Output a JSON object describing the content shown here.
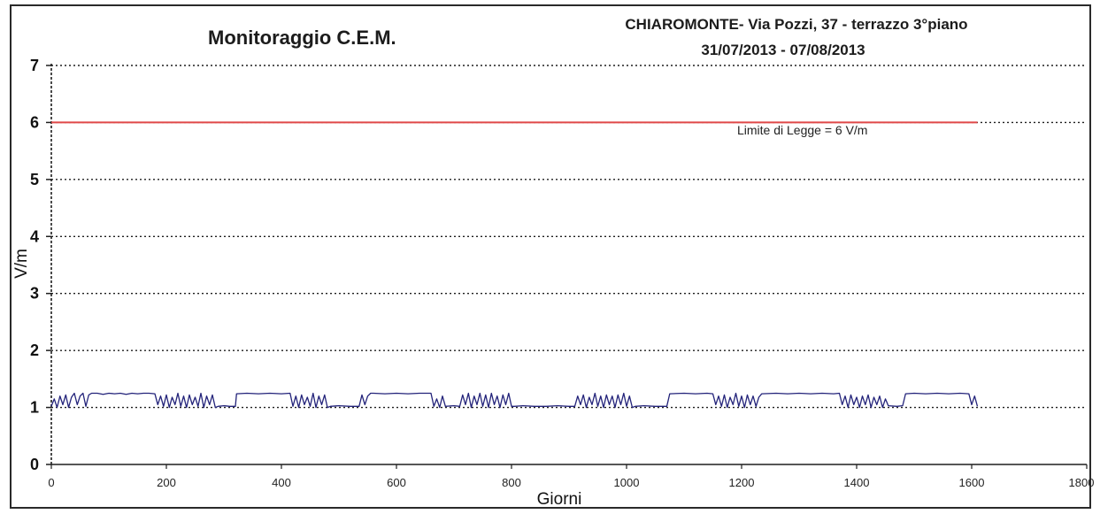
{
  "chart_data": {
    "type": "line",
    "title": "Monitoraggio C.E.M.",
    "subtitle_line1": "CHIAROMONTE- Via Pozzi, 37 - terrazzo 3°piano",
    "subtitle_line2": "31/07/2013 - 07/08/2013",
    "xlabel": "Giorni",
    "ylabel": "V/m",
    "xlim": [
      0,
      1800
    ],
    "ylim": [
      0,
      7
    ],
    "x_ticks": [
      "0",
      "200",
      "400",
      "600",
      "800",
      "1000",
      "1200",
      "1400",
      "1600",
      "1800"
    ],
    "y_ticks": [
      "0",
      "1",
      "2",
      "3",
      "4",
      "5",
      "6",
      "7"
    ],
    "grid": "horizontal-dotted",
    "limit_line": {
      "value": 6,
      "x_end": 1610,
      "label": "Limite di Legge = 6 V/m",
      "color": "#e04848"
    },
    "series": [
      {
        "color": "#23237a",
        "points": [
          [
            0,
            1.02
          ],
          [
            5,
            1.15
          ],
          [
            10,
            1.0
          ],
          [
            15,
            1.2
          ],
          [
            20,
            1.05
          ],
          [
            25,
            1.22
          ],
          [
            30,
            1.0
          ],
          [
            35,
            1.18
          ],
          [
            40,
            1.25
          ],
          [
            45,
            1.05
          ],
          [
            50,
            1.2
          ],
          [
            55,
            1.25
          ],
          [
            60,
            1.02
          ],
          [
            65,
            1.22
          ],
          [
            70,
            1.25
          ],
          [
            80,
            1.25
          ],
          [
            90,
            1.23
          ],
          [
            100,
            1.25
          ],
          [
            110,
            1.24
          ],
          [
            120,
            1.25
          ],
          [
            130,
            1.23
          ],
          [
            140,
            1.25
          ],
          [
            150,
            1.24
          ],
          [
            160,
            1.25
          ],
          [
            170,
            1.25
          ],
          [
            180,
            1.24
          ],
          [
            185,
            1.05
          ],
          [
            190,
            1.2
          ],
          [
            195,
            1.02
          ],
          [
            200,
            1.22
          ],
          [
            205,
            1.0
          ],
          [
            210,
            1.18
          ],
          [
            215,
            1.05
          ],
          [
            220,
            1.25
          ],
          [
            225,
            1.02
          ],
          [
            230,
            1.2
          ],
          [
            235,
            1.0
          ],
          [
            240,
            1.22
          ],
          [
            245,
            1.05
          ],
          [
            250,
            1.18
          ],
          [
            255,
            1.02
          ],
          [
            260,
            1.25
          ],
          [
            265,
            1.0
          ],
          [
            270,
            1.2
          ],
          [
            275,
            1.05
          ],
          [
            280,
            1.22
          ],
          [
            285,
            1.0
          ],
          [
            290,
            1.02
          ],
          [
            300,
            1.03
          ],
          [
            310,
            1.02
          ],
          [
            320,
            1.02
          ],
          [
            322,
            1.24
          ],
          [
            340,
            1.25
          ],
          [
            360,
            1.24
          ],
          [
            380,
            1.25
          ],
          [
            400,
            1.24
          ],
          [
            415,
            1.25
          ],
          [
            420,
            1.02
          ],
          [
            425,
            1.2
          ],
          [
            430,
            1.0
          ],
          [
            435,
            1.22
          ],
          [
            440,
            1.05
          ],
          [
            445,
            1.18
          ],
          [
            450,
            1.02
          ],
          [
            455,
            1.25
          ],
          [
            460,
            1.0
          ],
          [
            465,
            1.2
          ],
          [
            470,
            1.05
          ],
          [
            475,
            1.22
          ],
          [
            480,
            1.0
          ],
          [
            485,
            1.02
          ],
          [
            500,
            1.03
          ],
          [
            520,
            1.02
          ],
          [
            535,
            1.02
          ],
          [
            540,
            1.22
          ],
          [
            545,
            1.05
          ],
          [
            550,
            1.2
          ],
          [
            555,
            1.25
          ],
          [
            560,
            1.25
          ],
          [
            580,
            1.24
          ],
          [
            600,
            1.25
          ],
          [
            620,
            1.24
          ],
          [
            640,
            1.25
          ],
          [
            660,
            1.25
          ],
          [
            665,
            1.02
          ],
          [
            670,
            1.15
          ],
          [
            675,
            1.0
          ],
          [
            680,
            1.2
          ],
          [
            685,
            1.02
          ],
          [
            700,
            1.03
          ],
          [
            710,
            1.02
          ],
          [
            715,
            1.22
          ],
          [
            720,
            1.05
          ],
          [
            725,
            1.25
          ],
          [
            730,
            1.0
          ],
          [
            735,
            1.2
          ],
          [
            740,
            1.05
          ],
          [
            745,
            1.25
          ],
          [
            750,
            1.02
          ],
          [
            755,
            1.22
          ],
          [
            760,
            1.0
          ],
          [
            765,
            1.25
          ],
          [
            770,
            1.05
          ],
          [
            775,
            1.2
          ],
          [
            780,
            1.0
          ],
          [
            785,
            1.22
          ],
          [
            790,
            1.05
          ],
          [
            795,
            1.25
          ],
          [
            800,
            1.02
          ],
          [
            805,
            1.02
          ],
          [
            820,
            1.03
          ],
          [
            840,
            1.02
          ],
          [
            860,
            1.02
          ],
          [
            880,
            1.03
          ],
          [
            900,
            1.02
          ],
          [
            910,
            1.02
          ],
          [
            915,
            1.2
          ],
          [
            920,
            1.05
          ],
          [
            925,
            1.22
          ],
          [
            930,
            1.0
          ],
          [
            935,
            1.18
          ],
          [
            940,
            1.05
          ],
          [
            945,
            1.25
          ],
          [
            950,
            1.02
          ],
          [
            955,
            1.2
          ],
          [
            960,
            1.0
          ],
          [
            965,
            1.22
          ],
          [
            970,
            1.05
          ],
          [
            975,
            1.2
          ],
          [
            980,
            1.0
          ],
          [
            985,
            1.22
          ],
          [
            990,
            1.05
          ],
          [
            995,
            1.25
          ],
          [
            1000,
            1.02
          ],
          [
            1005,
            1.2
          ],
          [
            1010,
            1.0
          ],
          [
            1015,
            1.02
          ],
          [
            1030,
            1.03
          ],
          [
            1050,
            1.02
          ],
          [
            1070,
            1.02
          ],
          [
            1075,
            1.24
          ],
          [
            1100,
            1.25
          ],
          [
            1120,
            1.24
          ],
          [
            1140,
            1.25
          ],
          [
            1150,
            1.24
          ],
          [
            1155,
            1.05
          ],
          [
            1160,
            1.2
          ],
          [
            1165,
            1.02
          ],
          [
            1170,
            1.22
          ],
          [
            1175,
            1.0
          ],
          [
            1180,
            1.18
          ],
          [
            1185,
            1.05
          ],
          [
            1190,
            1.25
          ],
          [
            1195,
            1.02
          ],
          [
            1200,
            1.2
          ],
          [
            1205,
            1.0
          ],
          [
            1210,
            1.22
          ],
          [
            1215,
            1.05
          ],
          [
            1220,
            1.2
          ],
          [
            1225,
            1.02
          ],
          [
            1230,
            1.18
          ],
          [
            1235,
            1.24
          ],
          [
            1260,
            1.25
          ],
          [
            1280,
            1.24
          ],
          [
            1300,
            1.25
          ],
          [
            1320,
            1.24
          ],
          [
            1340,
            1.25
          ],
          [
            1360,
            1.24
          ],
          [
            1370,
            1.25
          ],
          [
            1375,
            1.05
          ],
          [
            1380,
            1.2
          ],
          [
            1385,
            1.0
          ],
          [
            1390,
            1.22
          ],
          [
            1395,
            1.05
          ],
          [
            1400,
            1.18
          ],
          [
            1405,
            1.0
          ],
          [
            1410,
            1.2
          ],
          [
            1415,
            1.05
          ],
          [
            1420,
            1.22
          ],
          [
            1425,
            1.0
          ],
          [
            1430,
            1.18
          ],
          [
            1435,
            1.05
          ],
          [
            1440,
            1.2
          ],
          [
            1445,
            1.0
          ],
          [
            1450,
            1.15
          ],
          [
            1455,
            1.03
          ],
          [
            1470,
            1.02
          ],
          [
            1480,
            1.03
          ],
          [
            1485,
            1.24
          ],
          [
            1500,
            1.25
          ],
          [
            1520,
            1.24
          ],
          [
            1540,
            1.25
          ],
          [
            1560,
            1.24
          ],
          [
            1580,
            1.25
          ],
          [
            1595,
            1.24
          ],
          [
            1600,
            1.05
          ],
          [
            1605,
            1.2
          ],
          [
            1610,
            1.02
          ]
        ]
      }
    ]
  }
}
